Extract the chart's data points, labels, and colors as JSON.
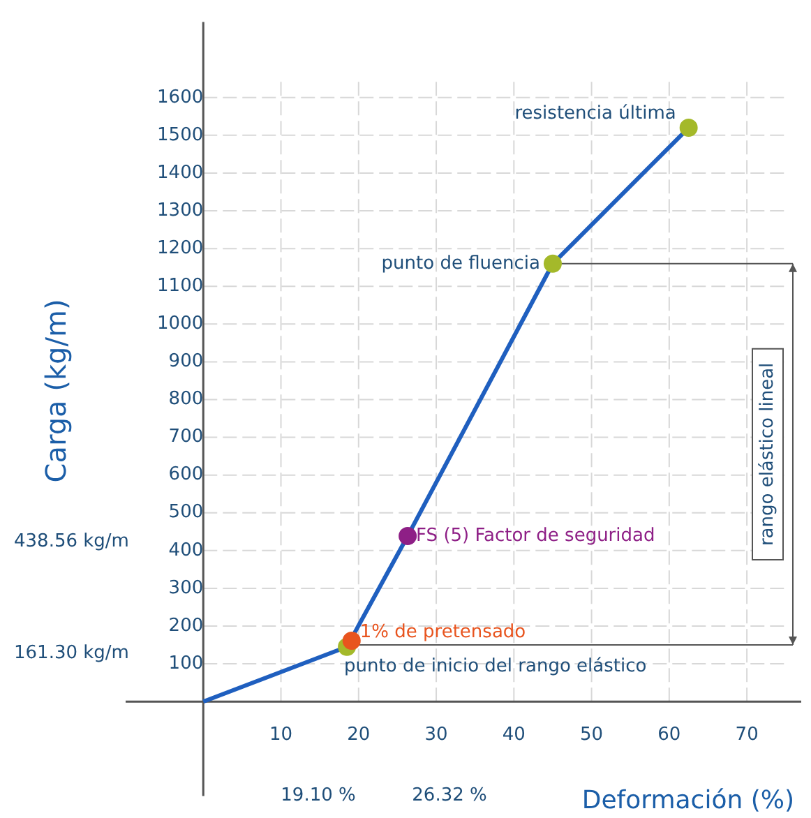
{
  "chart_data": {
    "type": "line",
    "xlabel": "Deformación (%)",
    "ylabel": "Carga (kg/m)",
    "xlim": [
      -10,
      77
    ],
    "ylim": [
      -250,
      1800
    ],
    "xticks": [
      10,
      20,
      30,
      40,
      50,
      60,
      70
    ],
    "yticks": [
      100,
      200,
      300,
      400,
      500,
      600,
      700,
      800,
      900,
      1000,
      1100,
      1200,
      1300,
      1400,
      1500,
      1600
    ],
    "grid": true,
    "legend": false,
    "line_style": "solid",
    "series": [
      {
        "color": "#1f5fbf",
        "x": [
          0,
          18.5,
          26.32,
          45,
          62.5
        ],
        "values": [
          0,
          145,
          438.56,
          1160,
          1520
        ],
        "marker": "none"
      },
      {
        "type": "scatter",
        "color": "#a4b92a",
        "colors": [
          "#a4b92a",
          "#e8541e",
          "#8e1f86",
          "#a4b92a",
          "#a4b92a"
        ],
        "x": [
          18.5,
          19.1,
          26.32,
          45,
          62.5
        ],
        "values": [
          145,
          161.3,
          438.56,
          1160,
          1520
        ],
        "marker": "circle"
      }
    ],
    "ref_lines": [
      {
        "axis": "y",
        "value": 150,
        "color": "#555555"
      },
      {
        "axis": "y",
        "value": 1160,
        "color": "#555555"
      }
    ],
    "annotations": [
      {
        "text": "resistencia última",
        "x": 62.5,
        "y": 1520
      },
      {
        "text": "punto de fluencia",
        "x": 45,
        "y": 1160
      },
      {
        "text": "FS (5) Factor de seguridad",
        "x": 26.32,
        "y": 438.56
      },
      {
        "text": "1% de pretensado",
        "x": 19.1,
        "y": 161.3
      },
      {
        "text": "punto de inicio del rango elástico",
        "x": 18.5,
        "y": 145
      },
      "438.56 kg/m",
      "161.30 kg/m",
      "19.10 %",
      "26.32 %",
      "rango elástico lineal"
    ]
  }
}
